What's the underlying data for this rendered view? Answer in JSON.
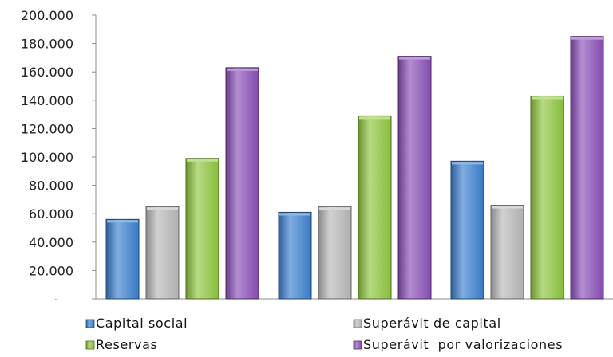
{
  "chart_data": {
    "type": "bar",
    "categories": [
      "",
      "",
      ""
    ],
    "series": [
      {
        "name": "Capital social",
        "values": [
          56000,
          61000,
          97000
        ],
        "color": "#3b7fcf"
      },
      {
        "name": "Superávit de capital",
        "values": [
          65000,
          65000,
          66000
        ],
        "color": "#b8b8b8"
      },
      {
        "name": "Reservas",
        "values": [
          99000,
          129000,
          143000
        ],
        "color": "#8ec63f"
      },
      {
        "name": "Superávit  por valorizaciones",
        "values": [
          163000,
          171000,
          185000
        ],
        "color": "#8a4fb8"
      }
    ],
    "ylim": [
      0,
      200000
    ],
    "yticks": [
      0,
      20000,
      40000,
      60000,
      80000,
      100000,
      120000,
      140000,
      160000,
      180000,
      200000
    ],
    "ytick_labels": [
      "-",
      "20.000",
      "40.000",
      "60.000",
      "80.000",
      "100.000",
      "120.000",
      "140.000",
      "160.000",
      "180.000",
      "200.000"
    ],
    "grid": false,
    "legend_position": "bottom",
    "title": "",
    "xlabel": "",
    "ylabel": ""
  }
}
